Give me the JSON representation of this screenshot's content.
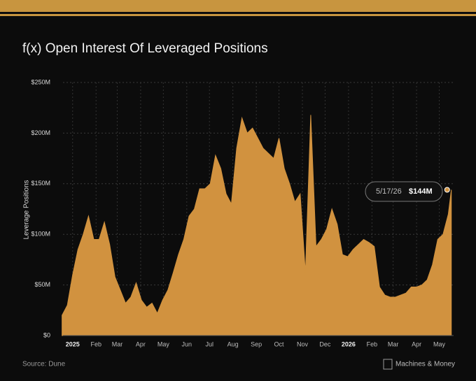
{
  "chart_data": {
    "type": "area",
    "title": "f(x) Open Interest Of Leveraged Positions",
    "y_label": "Leverage Positions",
    "source": "Source: Dune",
    "brand": "Machines & Money",
    "color": "#d1923f",
    "grid": true,
    "xlim": [
      "2024-12-10",
      "2026-05-20"
    ],
    "ylim": [
      0,
      250
    ],
    "yticks": [
      {
        "value": 0,
        "label": "$0"
      },
      {
        "value": 50,
        "label": "$50M"
      },
      {
        "value": 100,
        "label": "$100M"
      },
      {
        "value": 150,
        "label": "$150M"
      },
      {
        "value": 200,
        "label": "$200M"
      },
      {
        "value": 250,
        "label": "$250M"
      }
    ],
    "xticks": [
      {
        "value": "2025-01-01",
        "label": "2025"
      },
      {
        "value": "2025-02-01",
        "label": "Feb"
      },
      {
        "value": "2025-03-01",
        "label": "Mar"
      },
      {
        "value": "2025-04-01",
        "label": "Apr"
      },
      {
        "value": "2025-05-01",
        "label": "May"
      },
      {
        "value": "2025-06-01",
        "label": "Jun"
      },
      {
        "value": "2025-07-01",
        "label": "Jul"
      },
      {
        "value": "2025-08-01",
        "label": "Aug"
      },
      {
        "value": "2025-09-01",
        "label": "Sep"
      },
      {
        "value": "2025-10-01",
        "label": "Oct"
      },
      {
        "value": "2025-11-01",
        "label": "Nov"
      },
      {
        "value": "2025-12-01",
        "label": "Dec"
      },
      {
        "value": "2026-01-01",
        "label": "2026"
      },
      {
        "value": "2026-02-01",
        "label": "Feb"
      },
      {
        "value": "2026-03-01",
        "label": "Mar"
      },
      {
        "value": "2026-04-01",
        "label": "Apr"
      },
      {
        "value": "2026-05-01",
        "label": "May"
      }
    ],
    "x": [
      "2024-12-18",
      "2024-12-25",
      "2025-01-01",
      "2025-01-08",
      "2025-01-15",
      "2025-01-22",
      "2025-01-29",
      "2025-02-05",
      "2025-02-12",
      "2025-02-19",
      "2025-02-26",
      "2025-03-05",
      "2025-03-12",
      "2025-03-19",
      "2025-03-26",
      "2025-04-02",
      "2025-04-09",
      "2025-04-16",
      "2025-04-23",
      "2025-04-30",
      "2025-05-07",
      "2025-05-14",
      "2025-05-21",
      "2025-05-28",
      "2025-06-04",
      "2025-06-11",
      "2025-06-18",
      "2025-06-25",
      "2025-07-02",
      "2025-07-09",
      "2025-07-16",
      "2025-07-23",
      "2025-07-30",
      "2025-08-06",
      "2025-08-13",
      "2025-08-20",
      "2025-08-27",
      "2025-09-03",
      "2025-09-10",
      "2025-09-17",
      "2025-09-24",
      "2025-10-01",
      "2025-10-08",
      "2025-10-15",
      "2025-10-22",
      "2025-10-29",
      "2025-11-05",
      "2025-11-12",
      "2025-11-19",
      "2025-11-26",
      "2025-12-03",
      "2025-12-10",
      "2025-12-17",
      "2025-12-24",
      "2025-12-31",
      "2026-01-07",
      "2026-01-14",
      "2026-01-21",
      "2026-01-28",
      "2026-02-04",
      "2026-02-11",
      "2026-02-18",
      "2026-02-25",
      "2026-03-04",
      "2026-03-11",
      "2026-03-18",
      "2026-03-25",
      "2026-04-01",
      "2026-04-08",
      "2026-04-15",
      "2026-04-22",
      "2026-04-29",
      "2026-05-06",
      "2026-05-13",
      "2026-05-17"
    ],
    "values": [
      20,
      30,
      60,
      85,
      100,
      118,
      95,
      95,
      112,
      90,
      58,
      45,
      32,
      38,
      52,
      35,
      28,
      32,
      22,
      35,
      45,
      62,
      80,
      95,
      118,
      125,
      145,
      145,
      150,
      178,
      165,
      140,
      130,
      185,
      215,
      200,
      205,
      195,
      185,
      180,
      175,
      195,
      165,
      150,
      132,
      140,
      62,
      218,
      88,
      95,
      105,
      125,
      110,
      80,
      78,
      85,
      90,
      95,
      92,
      88,
      48,
      40,
      38,
      38,
      40,
      42,
      48,
      48,
      50,
      55,
      70,
      95,
      100,
      120,
      144
    ],
    "tooltip": {
      "date": "5/17/26",
      "value": 144,
      "label": "$144M"
    }
  }
}
